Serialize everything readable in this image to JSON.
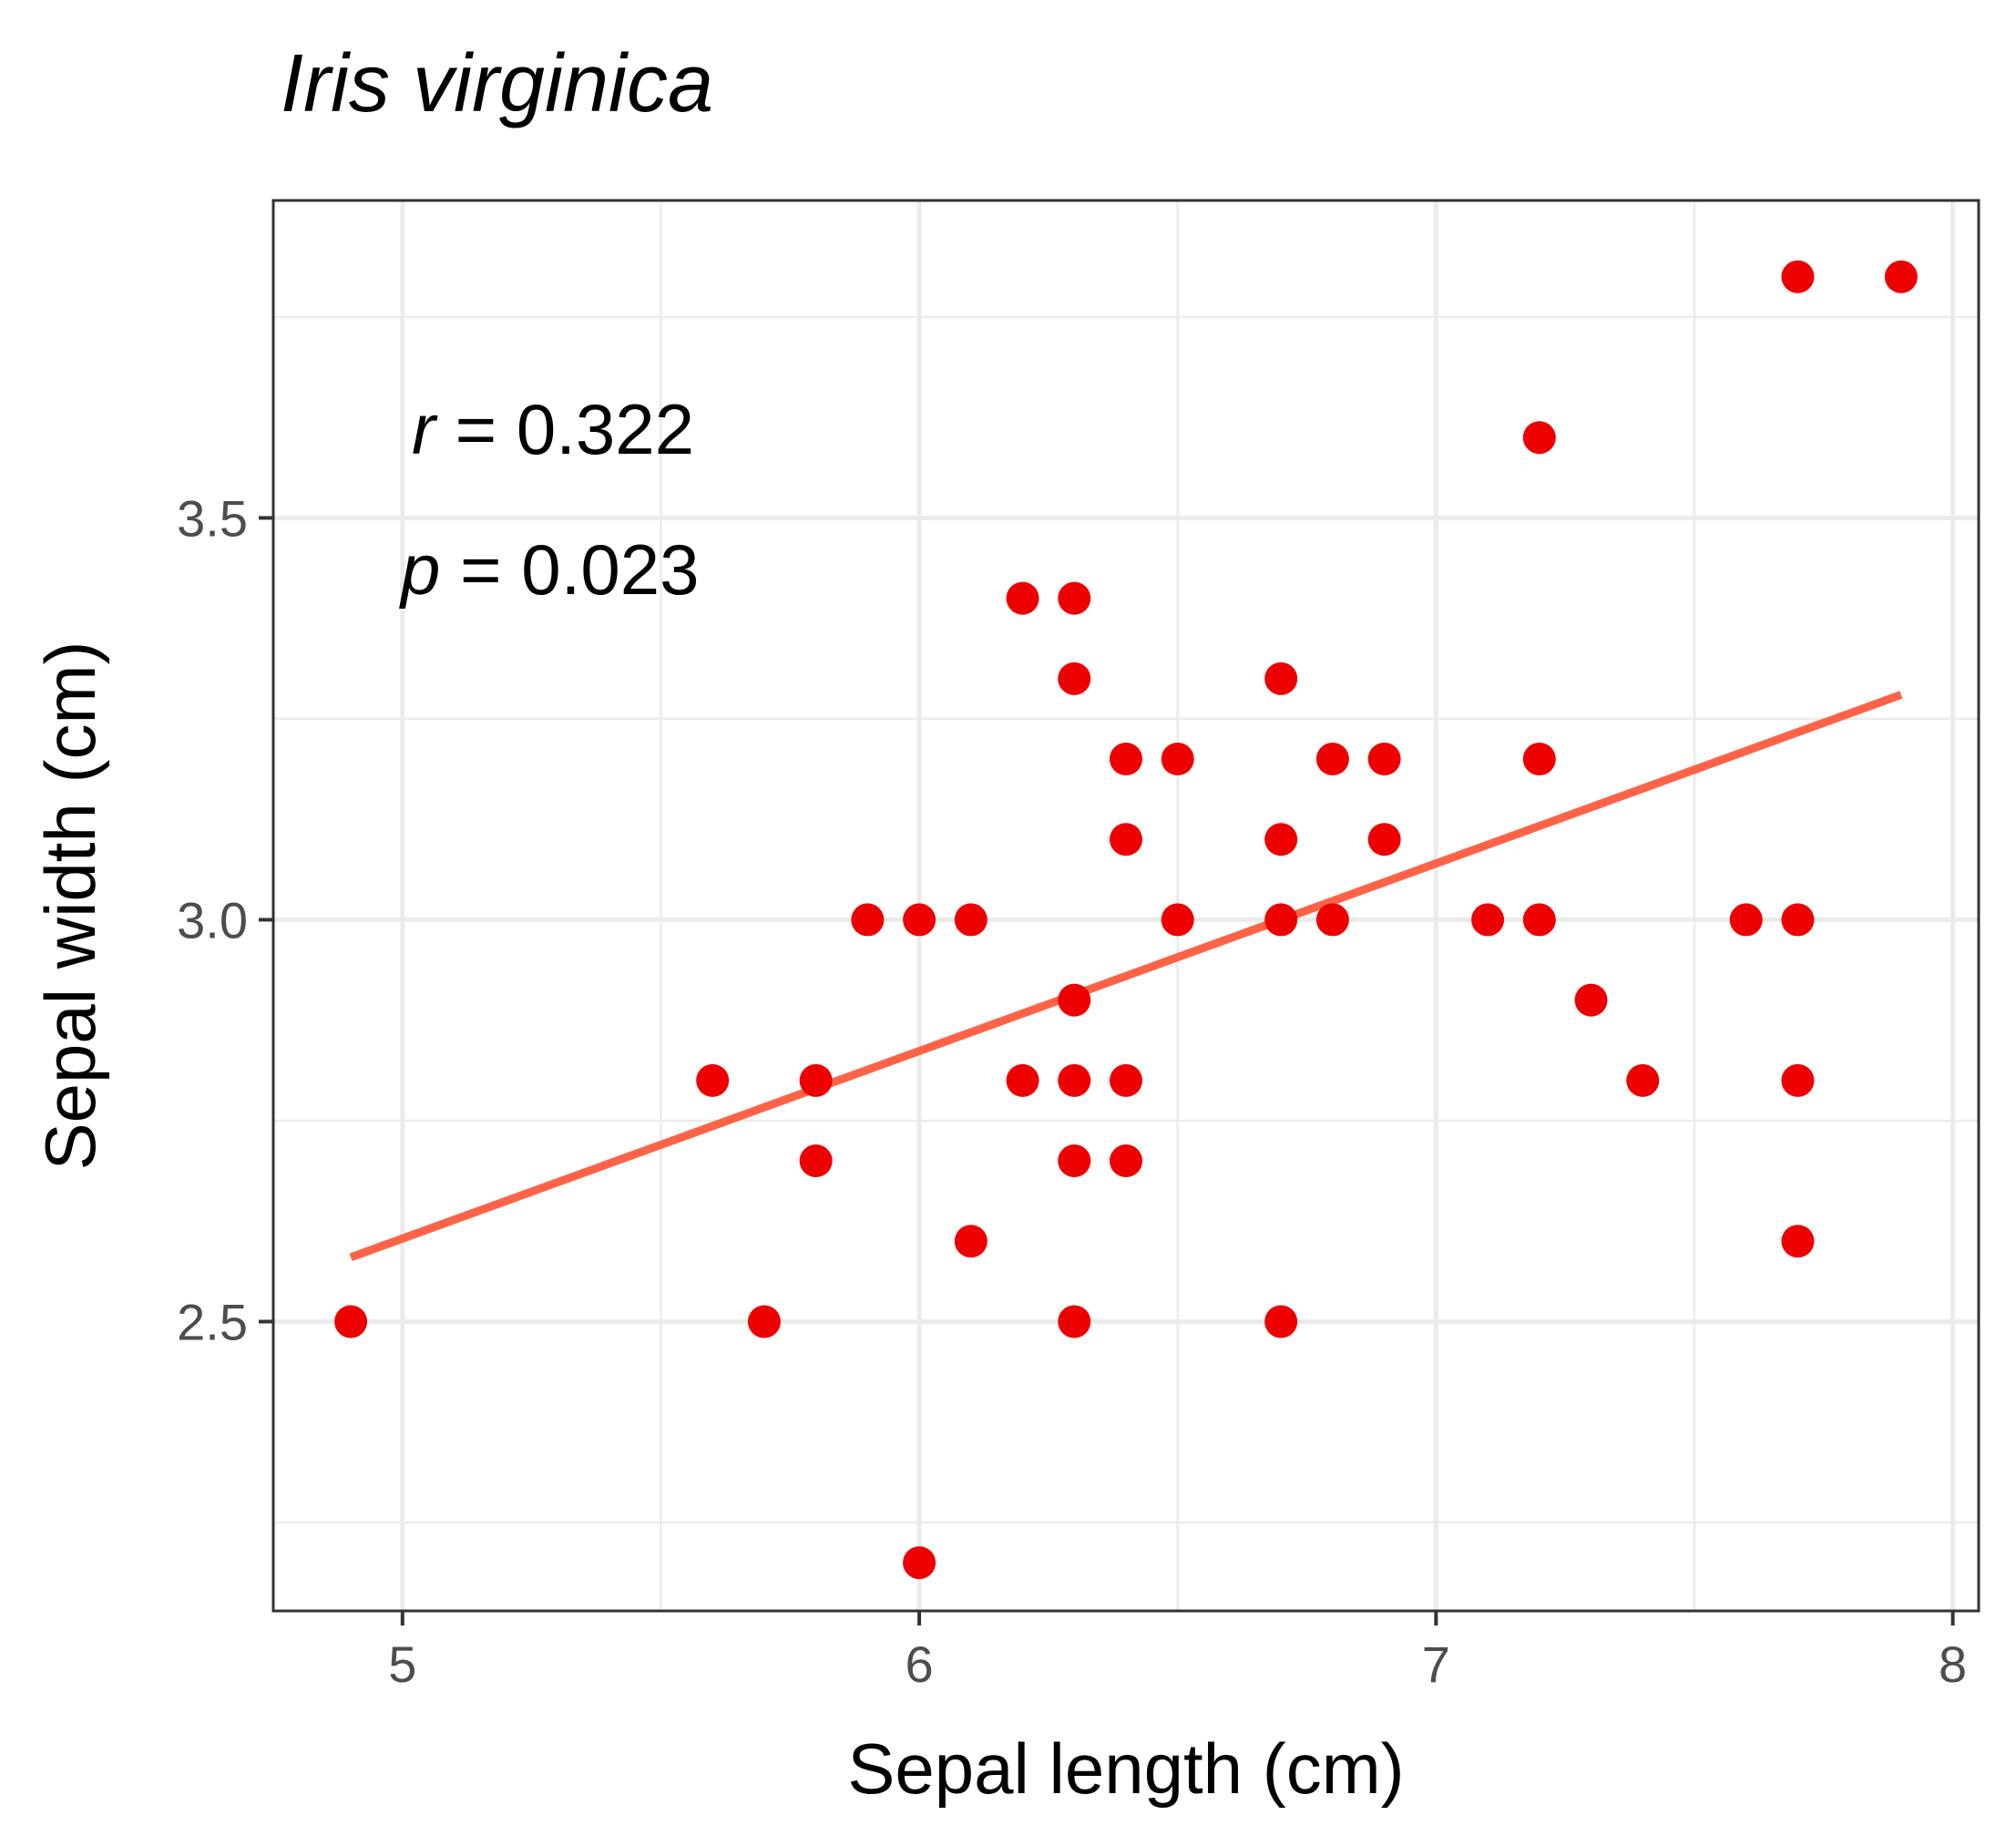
{
  "chart_data": {
    "type": "scatter",
    "title": "Iris virginica",
    "xlabel": "Sepal length (cm)",
    "ylabel": "Sepal width (cm)",
    "xlim": [
      4.75,
      8.05
    ],
    "ylim": [
      2.14,
      3.895
    ],
    "x_ticks": [
      5,
      6,
      7,
      8
    ],
    "x_tick_labels": [
      "5",
      "6",
      "7",
      "8"
    ],
    "y_ticks": [
      2.5,
      3.0,
      3.5
    ],
    "y_tick_labels": [
      "2.5",
      "3.0",
      "3.5"
    ],
    "grid": true,
    "annotations": {
      "r_symbol": "r",
      "r_text": " = 0.322",
      "p_symbol": "p",
      "p_text": " = 0.023"
    },
    "point_color": "#ee0000",
    "line_color": "#ff6347",
    "points": [
      {
        "x": 4.9,
        "y": 2.5
      },
      {
        "x": 5.6,
        "y": 2.8
      },
      {
        "x": 5.7,
        "y": 2.5
      },
      {
        "x": 5.8,
        "y": 2.8
      },
      {
        "x": 5.8,
        "y": 2.7
      },
      {
        "x": 5.9,
        "y": 3.0
      },
      {
        "x": 6.0,
        "y": 3.0
      },
      {
        "x": 6.0,
        "y": 2.2
      },
      {
        "x": 6.1,
        "y": 3.0
      },
      {
        "x": 6.1,
        "y": 2.6
      },
      {
        "x": 6.2,
        "y": 3.4
      },
      {
        "x": 6.2,
        "y": 2.8
      },
      {
        "x": 6.3,
        "y": 3.4
      },
      {
        "x": 6.3,
        "y": 3.3
      },
      {
        "x": 6.3,
        "y": 2.9
      },
      {
        "x": 6.3,
        "y": 2.8
      },
      {
        "x": 6.3,
        "y": 2.7
      },
      {
        "x": 6.3,
        "y": 2.5
      },
      {
        "x": 6.4,
        "y": 3.2
      },
      {
        "x": 6.4,
        "y": 3.1
      },
      {
        "x": 6.4,
        "y": 2.8
      },
      {
        "x": 6.4,
        "y": 2.7
      },
      {
        "x": 6.5,
        "y": 3.2
      },
      {
        "x": 6.5,
        "y": 3.0
      },
      {
        "x": 6.7,
        "y": 3.3
      },
      {
        "x": 6.7,
        "y": 3.1
      },
      {
        "x": 6.7,
        "y": 3.0
      },
      {
        "x": 6.7,
        "y": 2.5
      },
      {
        "x": 6.8,
        "y": 3.2
      },
      {
        "x": 6.8,
        "y": 3.0
      },
      {
        "x": 6.9,
        "y": 3.2
      },
      {
        "x": 6.9,
        "y": 3.1
      },
      {
        "x": 7.1,
        "y": 3.0
      },
      {
        "x": 7.2,
        "y": 3.6
      },
      {
        "x": 7.2,
        "y": 3.2
      },
      {
        "x": 7.2,
        "y": 3.0
      },
      {
        "x": 7.3,
        "y": 2.9
      },
      {
        "x": 7.4,
        "y": 2.8
      },
      {
        "x": 7.6,
        "y": 3.0
      },
      {
        "x": 7.7,
        "y": 3.8
      },
      {
        "x": 7.7,
        "y": 3.0
      },
      {
        "x": 7.7,
        "y": 2.8
      },
      {
        "x": 7.7,
        "y": 2.6
      },
      {
        "x": 7.9,
        "y": 3.8
      }
    ],
    "fit_line": {
      "x": [
        4.9,
        7.9
      ],
      "y": [
        2.58,
        3.28
      ]
    }
  }
}
